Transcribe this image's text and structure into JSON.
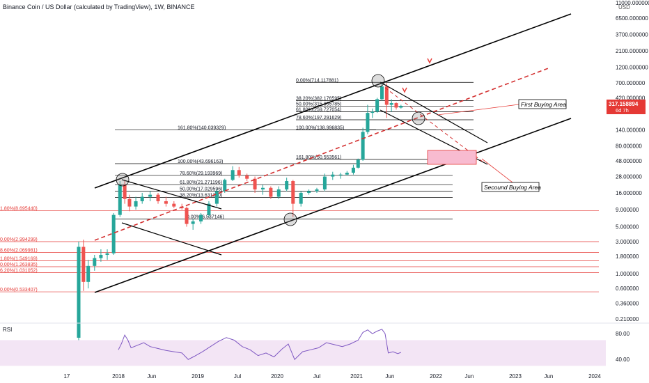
{
  "header": {
    "symbol_title": "Binance Coin / US Dollar (calculated by TradingView), 1W, BINANCE"
  },
  "price_axis": {
    "currency": "USD",
    "ticks": [
      {
        "v": 11000,
        "label": "11000.000000"
      },
      {
        "v": 6500,
        "label": "6500.000000"
      },
      {
        "v": 3700,
        "label": "3700.000000"
      },
      {
        "v": 2100,
        "label": "2100.000000"
      },
      {
        "v": 1200,
        "label": "1200.000000"
      },
      {
        "v": 700,
        "label": "700.000000"
      },
      {
        "v": 420,
        "label": "420.000000"
      },
      {
        "v": 140,
        "label": "140.000000"
      },
      {
        "v": 80,
        "label": "80.000000"
      },
      {
        "v": 48,
        "label": "48.000000"
      },
      {
        "v": 28,
        "label": "28.000000"
      },
      {
        "v": 16,
        "label": "16.000000"
      },
      {
        "v": 9,
        "label": "9.000000"
      },
      {
        "v": 5,
        "label": "5.000000"
      },
      {
        "v": 3,
        "label": "3.000000"
      },
      {
        "v": 1.8,
        "label": "1.800000"
      },
      {
        "v": 1,
        "label": "1.000000"
      },
      {
        "v": 0.6,
        "label": "0.600000"
      },
      {
        "v": 0.36,
        "label": "0.360000"
      },
      {
        "v": 0.21,
        "label": "0.210000"
      }
    ],
    "current_price": {
      "value": 317.158894,
      "label": "317.158894",
      "countdown": "6d 7h"
    }
  },
  "time_axis": {
    "ticks": [
      {
        "t": 2017.35,
        "label": "17"
      },
      {
        "t": 2018.0,
        "label": "2018"
      },
      {
        "t": 2018.42,
        "label": "Jun"
      },
      {
        "t": 2019.0,
        "label": "2019"
      },
      {
        "t": 2019.5,
        "label": "Jul"
      },
      {
        "t": 2020.0,
        "label": "2020"
      },
      {
        "t": 2020.5,
        "label": "Jul"
      },
      {
        "t": 2021.0,
        "label": "2021"
      },
      {
        "t": 2021.42,
        "label": "Jun"
      },
      {
        "t": 2022.0,
        "label": "2022"
      },
      {
        "t": 2022.42,
        "label": "Jun"
      },
      {
        "t": 2023.0,
        "label": "2023"
      },
      {
        "t": 2023.42,
        "label": "Jun"
      },
      {
        "t": 2024.0,
        "label": "2024"
      }
    ]
  },
  "colors": {
    "bull": "#26a69a",
    "bear": "#ef5350",
    "fib_red": "#e53935",
    "channel": "#000000",
    "dashed": "#d32f2f",
    "rsi_line": "#7e57c2",
    "rsi_band": "#f3e5f5",
    "buy_zone": "#f8bbd0",
    "price_tag": "#e53935"
  },
  "annotations": [
    {
      "text": "First Buying Area",
      "t": 2022.12,
      "p": 290
    },
    {
      "text": "Secound Buying Area",
      "t": 2021.88,
      "p": 20
    }
  ],
  "rsi": {
    "label": "RSI",
    "ticks": [
      {
        "v": 80,
        "label": "80.00"
      },
      {
        "v": 40,
        "label": "40.00"
      }
    ],
    "band": [
      30,
      70
    ]
  },
  "chart_data": {
    "type": "candlestick",
    "title": "Binance Coin / US Dollar (calculated by TradingView), 1W, BINANCE",
    "xlabel": "",
    "ylabel": "USD",
    "y_scale": "log",
    "ylim": [
      0.21,
      11000
    ],
    "candles": [
      {
        "t": 2017.5,
        "o": 0.11,
        "h": 3.0,
        "l": 0.1,
        "c": 2.5
      },
      {
        "t": 2017.56,
        "o": 2.5,
        "h": 3.2,
        "l": 0.55,
        "c": 0.75
      },
      {
        "t": 2017.62,
        "o": 0.75,
        "h": 1.6,
        "l": 0.6,
        "c": 1.3
      },
      {
        "t": 2017.7,
        "o": 1.3,
        "h": 1.9,
        "l": 1.1,
        "c": 1.7
      },
      {
        "t": 2017.78,
        "o": 1.7,
        "h": 2.3,
        "l": 1.5,
        "c": 1.9
      },
      {
        "t": 2017.86,
        "o": 1.9,
        "h": 2.3,
        "l": 1.6,
        "c": 2.0
      },
      {
        "t": 2017.94,
        "o": 2.0,
        "h": 8.0,
        "l": 1.9,
        "c": 7.5
      },
      {
        "t": 2018.02,
        "o": 7.5,
        "h": 24,
        "l": 7.0,
        "c": 21
      },
      {
        "t": 2018.08,
        "o": 21,
        "h": 25,
        "l": 11,
        "c": 13
      },
      {
        "t": 2018.14,
        "o": 13,
        "h": 15,
        "l": 8.5,
        "c": 10
      },
      {
        "t": 2018.22,
        "o": 10,
        "h": 14,
        "l": 9,
        "c": 12
      },
      {
        "t": 2018.3,
        "o": 12,
        "h": 16,
        "l": 11,
        "c": 14
      },
      {
        "t": 2018.4,
        "o": 14,
        "h": 17,
        "l": 12,
        "c": 15
      },
      {
        "t": 2018.5,
        "o": 15,
        "h": 16,
        "l": 11,
        "c": 12
      },
      {
        "t": 2018.6,
        "o": 12,
        "h": 14,
        "l": 10,
        "c": 11
      },
      {
        "t": 2018.7,
        "o": 11,
        "h": 12,
        "l": 9.5,
        "c": 10
      },
      {
        "t": 2018.8,
        "o": 10,
        "h": 11,
        "l": 9,
        "c": 9.5
      },
      {
        "t": 2018.86,
        "o": 9.5,
        "h": 10,
        "l": 5.0,
        "c": 5.5
      },
      {
        "t": 2018.94,
        "o": 5.5,
        "h": 6.5,
        "l": 4.5,
        "c": 6.0
      },
      {
        "t": 2019.04,
        "o": 6.0,
        "h": 8,
        "l": 5.5,
        "c": 7.5
      },
      {
        "t": 2019.14,
        "o": 7.5,
        "h": 12,
        "l": 7,
        "c": 11
      },
      {
        "t": 2019.24,
        "o": 11,
        "h": 18,
        "l": 10,
        "c": 17
      },
      {
        "t": 2019.34,
        "o": 17,
        "h": 26,
        "l": 16,
        "c": 25
      },
      {
        "t": 2019.44,
        "o": 25,
        "h": 40,
        "l": 24,
        "c": 35
      },
      {
        "t": 2019.52,
        "o": 35,
        "h": 39,
        "l": 27,
        "c": 29
      },
      {
        "t": 2019.62,
        "o": 29,
        "h": 31,
        "l": 24,
        "c": 26
      },
      {
        "t": 2019.72,
        "o": 26,
        "h": 28,
        "l": 16,
        "c": 18
      },
      {
        "t": 2019.82,
        "o": 18,
        "h": 21,
        "l": 15,
        "c": 19
      },
      {
        "t": 2019.92,
        "o": 19,
        "h": 20,
        "l": 13,
        "c": 14
      },
      {
        "t": 2020.02,
        "o": 14,
        "h": 20,
        "l": 13,
        "c": 18
      },
      {
        "t": 2020.12,
        "o": 18,
        "h": 27,
        "l": 17,
        "c": 24
      },
      {
        "t": 2020.2,
        "o": 24,
        "h": 25,
        "l": 7,
        "c": 11
      },
      {
        "t": 2020.3,
        "o": 11,
        "h": 17,
        "l": 10,
        "c": 16
      },
      {
        "t": 2020.4,
        "o": 16,
        "h": 18,
        "l": 15,
        "c": 17
      },
      {
        "t": 2020.5,
        "o": 17,
        "h": 19,
        "l": 16,
        "c": 18
      },
      {
        "t": 2020.6,
        "o": 18,
        "h": 31,
        "l": 17,
        "c": 28
      },
      {
        "t": 2020.7,
        "o": 28,
        "h": 33,
        "l": 25,
        "c": 30
      },
      {
        "t": 2020.8,
        "o": 30,
        "h": 32,
        "l": 26,
        "c": 30
      },
      {
        "t": 2020.88,
        "o": 30,
        "h": 34,
        "l": 29,
        "c": 32
      },
      {
        "t": 2020.96,
        "o": 32,
        "h": 42,
        "l": 30,
        "c": 38
      },
      {
        "t": 2021.02,
        "o": 38,
        "h": 52,
        "l": 37,
        "c": 50
      },
      {
        "t": 2021.08,
        "o": 50,
        "h": 150,
        "l": 48,
        "c": 130
      },
      {
        "t": 2021.14,
        "o": 130,
        "h": 330,
        "l": 120,
        "c": 250
      },
      {
        "t": 2021.2,
        "o": 250,
        "h": 290,
        "l": 210,
        "c": 260
      },
      {
        "t": 2021.26,
        "o": 260,
        "h": 420,
        "l": 250,
        "c": 400
      },
      {
        "t": 2021.32,
        "o": 400,
        "h": 714,
        "l": 380,
        "c": 620
      },
      {
        "t": 2021.38,
        "o": 620,
        "h": 690,
        "l": 210,
        "c": 330
      },
      {
        "t": 2021.44,
        "o": 330,
        "h": 400,
        "l": 260,
        "c": 350
      },
      {
        "t": 2021.5,
        "o": 350,
        "h": 360,
        "l": 280,
        "c": 300
      },
      {
        "t": 2021.56,
        "o": 300,
        "h": 330,
        "l": 290,
        "c": 317
      }
    ],
    "fib_levels": [
      {
        "label": "0.00%(714.117881)",
        "p": 714.117881
      },
      {
        "label": "38.20%(382.176595)",
        "p": 382.176595
      },
      {
        "label": "50.00%(315.055785)",
        "p": 315.055785
      },
      {
        "label": "61.80%(259.727054)",
        "p": 259.727054
      },
      {
        "label": "78.60%(197.291629)",
        "p": 197.291629
      },
      {
        "label": "161.80%(140.039329)",
        "p": 140.039329
      },
      {
        "label": "100.00%(138.996835)",
        "p": 138.996835
      },
      {
        "label": "100.00%(43.696163)",
        "p": 43.696163
      },
      {
        "label": "161.80%(50.553561)",
        "p": 50.553561
      },
      {
        "label": "78.60%(29.193969)",
        "p": 29.193969
      },
      {
        "label": "61.80%(21.271196)",
        "p": 21.271196
      },
      {
        "label": "50.00%(17.029596)",
        "p": 17.029596
      },
      {
        "label": "38.20%(13.631370)",
        "p": 13.63137
      },
      {
        "label": "0.00%(6.537146)",
        "p": 6.537146
      },
      {
        "label": "1.80%(8.695440)",
        "p": 8.69544
      },
      {
        "label": "0.00%(2.994299)",
        "p": 2.994299
      },
      {
        "label": "8.60%(2.069981)",
        "p": 2.069981
      },
      {
        "label": "1.80%(1.549169)",
        "p": 1.549169
      },
      {
        "label": "0.00%(1.263835)",
        "p": 1.263835
      },
      {
        "label": "6.20%(1.031052)",
        "p": 1.031052
      },
      {
        "label": "0.00%(0.533407)",
        "p": 0.533407
      }
    ],
    "rsi_values": [
      {
        "t": 2018.0,
        "v": 55
      },
      {
        "t": 2018.04,
        "v": 65
      },
      {
        "t": 2018.08,
        "v": 78
      },
      {
        "t": 2018.12,
        "v": 70
      },
      {
        "t": 2018.16,
        "v": 58
      },
      {
        "t": 2018.24,
        "v": 62
      },
      {
        "t": 2018.32,
        "v": 66
      },
      {
        "t": 2018.4,
        "v": 60
      },
      {
        "t": 2018.5,
        "v": 57
      },
      {
        "t": 2018.6,
        "v": 54
      },
      {
        "t": 2018.7,
        "v": 52
      },
      {
        "t": 2018.8,
        "v": 50
      },
      {
        "t": 2018.88,
        "v": 40
      },
      {
        "t": 2018.96,
        "v": 45
      },
      {
        "t": 2019.06,
        "v": 52
      },
      {
        "t": 2019.16,
        "v": 60
      },
      {
        "t": 2019.26,
        "v": 68
      },
      {
        "t": 2019.36,
        "v": 74
      },
      {
        "t": 2019.46,
        "v": 70
      },
      {
        "t": 2019.56,
        "v": 60
      },
      {
        "t": 2019.66,
        "v": 55
      },
      {
        "t": 2019.76,
        "v": 46
      },
      {
        "t": 2019.86,
        "v": 50
      },
      {
        "t": 2019.96,
        "v": 44
      },
      {
        "t": 2020.06,
        "v": 56
      },
      {
        "t": 2020.14,
        "v": 64
      },
      {
        "t": 2020.22,
        "v": 40
      },
      {
        "t": 2020.32,
        "v": 52
      },
      {
        "t": 2020.42,
        "v": 55
      },
      {
        "t": 2020.52,
        "v": 58
      },
      {
        "t": 2020.62,
        "v": 66
      },
      {
        "t": 2020.72,
        "v": 63
      },
      {
        "t": 2020.82,
        "v": 60
      },
      {
        "t": 2020.92,
        "v": 64
      },
      {
        "t": 2021.02,
        "v": 70
      },
      {
        "t": 2021.08,
        "v": 82
      },
      {
        "t": 2021.14,
        "v": 86
      },
      {
        "t": 2021.2,
        "v": 80
      },
      {
        "t": 2021.26,
        "v": 84
      },
      {
        "t": 2021.32,
        "v": 87
      },
      {
        "t": 2021.36,
        "v": 80
      },
      {
        "t": 2021.4,
        "v": 50
      },
      {
        "t": 2021.46,
        "v": 52
      },
      {
        "t": 2021.52,
        "v": 49
      },
      {
        "t": 2021.56,
        "v": 51
      }
    ]
  }
}
